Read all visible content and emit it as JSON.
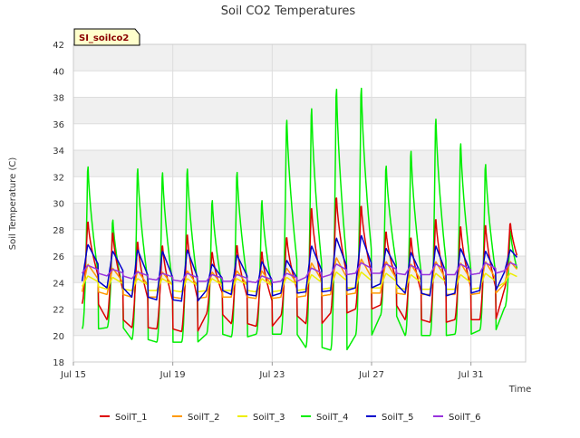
{
  "chart_data": {
    "type": "line",
    "title": "Soil CO2 Temperatures",
    "badge": "SI_soilco2",
    "xlabel": "Time",
    "ylabel": "Soil Temperature (C)",
    "ylim": [
      18,
      42
    ],
    "yticks": [
      18,
      20,
      22,
      24,
      26,
      28,
      30,
      32,
      34,
      36,
      38,
      40,
      42
    ],
    "xlim": [
      15,
      33.2
    ],
    "xticks": [
      {
        "value": 15,
        "label": "Jul 15"
      },
      {
        "value": 19,
        "label": "Jul 19"
      },
      {
        "value": 23,
        "label": "Jul 23"
      },
      {
        "value": 27,
        "label": "Jul 27"
      },
      {
        "value": 31,
        "label": "Jul 31"
      }
    ],
    "x_unit": "day of July",
    "grid": true,
    "legend_position": "bottom",
    "colors": {
      "SoilT_1": "#dd0000",
      "SoilT_2": "#ff9900",
      "SoilT_3": "#eeee00",
      "SoilT_4": "#00ee00",
      "SoilT_5": "#0000cc",
      "SoilT_6": "#9933dd",
      "band": "#f0f0f0",
      "badge_bg": "#ffffcc"
    },
    "daily": {
      "days": [
        15,
        16,
        17,
        18,
        19,
        20,
        21,
        22,
        23,
        24,
        25,
        26,
        27,
        28,
        29,
        30,
        31,
        32
      ],
      "SoilT_1": {
        "max": [
          29.0,
          28.2,
          27.5,
          27.2,
          28.1,
          26.6,
          27.2,
          26.7,
          27.8,
          30.2,
          31.0,
          30.3,
          28.2,
          27.8,
          29.3,
          28.7,
          28.8,
          28.8
        ],
        "min": [
          22.4,
          21.2,
          20.6,
          20.5,
          20.3,
          21.6,
          20.9,
          20.7,
          21.5,
          20.9,
          21.7,
          22.0,
          22.3,
          21.2,
          21.0,
          21.2,
          21.2,
          23.5
        ]
      },
      "SoilT_2": {
        "max": [
          25.4,
          25.1,
          24.9,
          24.8,
          24.9,
          24.8,
          24.9,
          24.9,
          25.1,
          25.5,
          25.9,
          25.8,
          25.6,
          25.4,
          25.6,
          25.5,
          25.6,
          25.6
        ],
        "min": [
          23.3,
          23.1,
          22.9,
          22.9,
          22.8,
          22.9,
          22.9,
          22.8,
          22.9,
          23.0,
          23.1,
          23.2,
          23.2,
          23.1,
          23.1,
          23.1,
          23.2,
          23.9
        ]
      },
      "SoilT_3": {
        "max": [
          24.5,
          24.4,
          24.3,
          24.3,
          24.3,
          24.3,
          24.3,
          24.3,
          24.4,
          24.6,
          24.8,
          24.8,
          24.7,
          24.6,
          24.7,
          24.6,
          24.7,
          24.7
        ],
        "min": [
          23.7,
          23.5,
          23.4,
          23.4,
          23.3,
          23.4,
          23.4,
          23.3,
          23.4,
          23.5,
          23.6,
          23.6,
          23.6,
          23.5,
          23.5,
          23.5,
          23.6,
          24.0
        ]
      },
      "SoilT_4": {
        "max": [
          33.6,
          29.3,
          33.5,
          33.2,
          33.5,
          30.9,
          33.2,
          30.9,
          37.4,
          38.4,
          40.0,
          40.0,
          33.6,
          34.9,
          37.5,
          35.5,
          33.8,
          28.3
        ],
        "min": [
          20.5,
          20.6,
          19.7,
          19.5,
          19.5,
          20.1,
          19.9,
          20.1,
          20.1,
          19.1,
          18.9,
          20.0,
          21.5,
          20.0,
          20.0,
          20.1,
          20.4,
          22.1
        ]
      },
      "SoilT_5": {
        "max": [
          26.9,
          26.4,
          26.5,
          26.4,
          26.5,
          25.4,
          26.1,
          25.6,
          25.7,
          26.8,
          27.4,
          27.6,
          26.6,
          26.3,
          26.8,
          26.6,
          26.4,
          26.5
        ],
        "min": [
          24.1,
          23.6,
          22.9,
          22.7,
          22.6,
          23.4,
          23.1,
          23.0,
          23.2,
          23.3,
          23.4,
          23.6,
          23.9,
          23.2,
          23.0,
          23.2,
          23.4,
          24.8
        ]
      },
      "SoilT_6": {
        "max": [
          25.3,
          25.0,
          24.8,
          24.7,
          24.7,
          24.6,
          24.6,
          24.5,
          24.7,
          25.1,
          25.4,
          25.5,
          25.4,
          25.3,
          25.4,
          25.4,
          25.5,
          25.5
        ],
        "min": [
          24.7,
          24.5,
          24.3,
          24.2,
          24.1,
          24.1,
          24.1,
          24.0,
          24.1,
          24.4,
          24.6,
          24.7,
          24.7,
          24.6,
          24.6,
          24.6,
          24.7,
          24.9
        ]
      }
    },
    "series": [
      {
        "name": "SoilT_1"
      },
      {
        "name": "SoilT_2"
      },
      {
        "name": "SoilT_3"
      },
      {
        "name": "SoilT_4"
      },
      {
        "name": "SoilT_5"
      },
      {
        "name": "SoilT_6"
      }
    ]
  }
}
